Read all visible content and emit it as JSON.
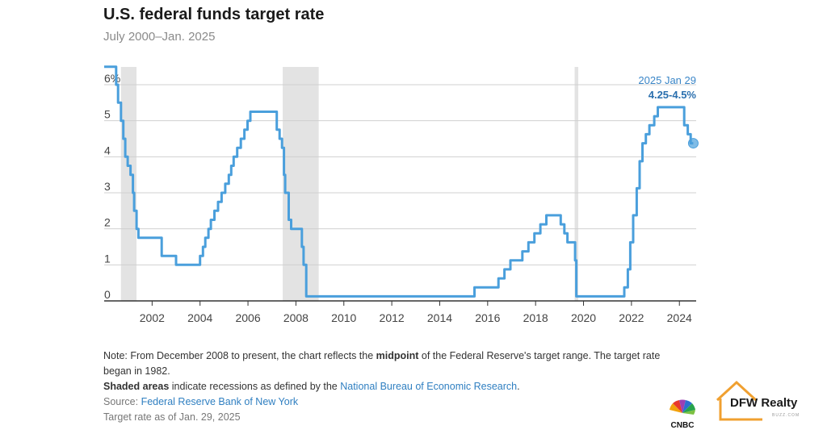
{
  "title": "U.S. federal funds target rate",
  "subtitle": "July 2000–Jan. 2025",
  "chart_data": {
    "type": "line",
    "ylim": [
      0,
      6.5
    ],
    "xlim": [
      2000.0,
      2025.25
    ],
    "y_ticks": [
      {
        "value": 6,
        "label": "6%"
      },
      {
        "value": 5,
        "label": "5"
      },
      {
        "value": 4,
        "label": "4"
      },
      {
        "value": 3,
        "label": "3"
      },
      {
        "value": 2,
        "label": "2"
      },
      {
        "value": 1,
        "label": "1"
      },
      {
        "value": 0,
        "label": "0"
      }
    ],
    "x_ticks": [
      "2002",
      "2004",
      "2006",
      "2008",
      "2010",
      "2012",
      "2014",
      "2016",
      "2018",
      "2020",
      "2022",
      "2024"
    ],
    "grid": true,
    "recessions": [
      [
        2001.2,
        2001.85
      ],
      [
        2007.95,
        2009.45
      ],
      [
        2020.13,
        2020.28
      ]
    ],
    "series": [
      {
        "color": "#4a9fdc",
        "points": [
          [
            2000.5,
            6.5
          ],
          [
            2001.0,
            6.5
          ],
          [
            2001.0,
            6.0
          ],
          [
            2001.08,
            6.0
          ],
          [
            2001.08,
            5.5
          ],
          [
            2001.2,
            5.5
          ],
          [
            2001.2,
            5.0
          ],
          [
            2001.3,
            5.0
          ],
          [
            2001.3,
            4.5
          ],
          [
            2001.38,
            4.5
          ],
          [
            2001.38,
            4.0
          ],
          [
            2001.48,
            4.0
          ],
          [
            2001.48,
            3.75
          ],
          [
            2001.6,
            3.75
          ],
          [
            2001.6,
            3.5
          ],
          [
            2001.7,
            3.5
          ],
          [
            2001.7,
            3.0
          ],
          [
            2001.75,
            3.0
          ],
          [
            2001.75,
            2.5
          ],
          [
            2001.85,
            2.5
          ],
          [
            2001.85,
            2.0
          ],
          [
            2001.93,
            2.0
          ],
          [
            2001.93,
            1.75
          ],
          [
            2002.9,
            1.75
          ],
          [
            2002.9,
            1.25
          ],
          [
            2003.5,
            1.25
          ],
          [
            2003.5,
            1.0
          ],
          [
            2004.5,
            1.0
          ],
          [
            2004.5,
            1.25
          ],
          [
            2004.62,
            1.25
          ],
          [
            2004.62,
            1.5
          ],
          [
            2004.72,
            1.5
          ],
          [
            2004.72,
            1.75
          ],
          [
            2004.85,
            1.75
          ],
          [
            2004.85,
            2.0
          ],
          [
            2004.95,
            2.0
          ],
          [
            2004.95,
            2.25
          ],
          [
            2005.1,
            2.25
          ],
          [
            2005.1,
            2.5
          ],
          [
            2005.25,
            2.5
          ],
          [
            2005.25,
            2.75
          ],
          [
            2005.4,
            2.75
          ],
          [
            2005.4,
            3.0
          ],
          [
            2005.55,
            3.0
          ],
          [
            2005.55,
            3.25
          ],
          [
            2005.7,
            3.25
          ],
          [
            2005.7,
            3.5
          ],
          [
            2005.8,
            3.5
          ],
          [
            2005.8,
            3.75
          ],
          [
            2005.9,
            3.75
          ],
          [
            2005.9,
            4.0
          ],
          [
            2006.05,
            4.0
          ],
          [
            2006.05,
            4.25
          ],
          [
            2006.2,
            4.25
          ],
          [
            2006.2,
            4.5
          ],
          [
            2006.35,
            4.5
          ],
          [
            2006.35,
            4.75
          ],
          [
            2006.48,
            4.75
          ],
          [
            2006.48,
            5.0
          ],
          [
            2006.6,
            5.0
          ],
          [
            2006.6,
            5.25
          ],
          [
            2007.7,
            5.25
          ],
          [
            2007.7,
            4.75
          ],
          [
            2007.82,
            4.75
          ],
          [
            2007.82,
            4.5
          ],
          [
            2007.92,
            4.5
          ],
          [
            2007.92,
            4.25
          ],
          [
            2008.0,
            4.25
          ],
          [
            2008.0,
            3.5
          ],
          [
            2008.05,
            3.5
          ],
          [
            2008.05,
            3.0
          ],
          [
            2008.2,
            3.0
          ],
          [
            2008.2,
            2.25
          ],
          [
            2008.3,
            2.25
          ],
          [
            2008.3,
            2.0
          ],
          [
            2008.75,
            2.0
          ],
          [
            2008.75,
            1.5
          ],
          [
            2008.82,
            1.5
          ],
          [
            2008.82,
            1.0
          ],
          [
            2008.93,
            1.0
          ],
          [
            2008.93,
            0.125
          ],
          [
            2015.95,
            0.125
          ],
          [
            2015.95,
            0.375
          ],
          [
            2016.95,
            0.375
          ],
          [
            2016.95,
            0.625
          ],
          [
            2017.2,
            0.625
          ],
          [
            2017.2,
            0.875
          ],
          [
            2017.45,
            0.875
          ],
          [
            2017.45,
            1.125
          ],
          [
            2017.95,
            1.125
          ],
          [
            2017.95,
            1.375
          ],
          [
            2018.2,
            1.375
          ],
          [
            2018.2,
            1.625
          ],
          [
            2018.45,
            1.625
          ],
          [
            2018.45,
            1.875
          ],
          [
            2018.7,
            1.875
          ],
          [
            2018.7,
            2.125
          ],
          [
            2018.95,
            2.125
          ],
          [
            2018.95,
            2.375
          ],
          [
            2019.55,
            2.375
          ],
          [
            2019.55,
            2.125
          ],
          [
            2019.7,
            2.125
          ],
          [
            2019.7,
            1.875
          ],
          [
            2019.83,
            1.875
          ],
          [
            2019.83,
            1.625
          ],
          [
            2020.15,
            1.625
          ],
          [
            2020.15,
            1.125
          ],
          [
            2020.2,
            1.125
          ],
          [
            2020.2,
            0.125
          ],
          [
            2022.2,
            0.125
          ],
          [
            2022.2,
            0.375
          ],
          [
            2022.35,
            0.375
          ],
          [
            2022.35,
            0.875
          ],
          [
            2022.45,
            0.875
          ],
          [
            2022.45,
            1.625
          ],
          [
            2022.57,
            1.625
          ],
          [
            2022.57,
            2.375
          ],
          [
            2022.72,
            2.375
          ],
          [
            2022.72,
            3.125
          ],
          [
            2022.84,
            3.125
          ],
          [
            2022.84,
            3.875
          ],
          [
            2022.96,
            3.875
          ],
          [
            2022.96,
            4.375
          ],
          [
            2023.1,
            4.375
          ],
          [
            2023.1,
            4.625
          ],
          [
            2023.25,
            4.625
          ],
          [
            2023.25,
            4.875
          ],
          [
            2023.45,
            4.875
          ],
          [
            2023.45,
            5.125
          ],
          [
            2023.6,
            5.125
          ],
          [
            2023.6,
            5.375
          ],
          [
            2024.7,
            5.375
          ],
          [
            2024.7,
            4.875
          ],
          [
            2024.85,
            4.875
          ],
          [
            2024.85,
            4.625
          ],
          [
            2024.97,
            4.625
          ],
          [
            2024.97,
            4.375
          ],
          [
            2025.08,
            4.375
          ]
        ],
        "end_point": {
          "x": 2025.08,
          "y": 4.375
        }
      }
    ],
    "annotations": {
      "date": "2025 Jan 29",
      "value": "4.25-4.5%"
    }
  },
  "notes": {
    "line1_pre": "Note: From December 2008 to present, the chart reflects the ",
    "line1_bold": "midpoint",
    "line1_post": " of the Federal Reserve's target range. The target rate began in 1982.",
    "line2_bold": "Shaded areas",
    "line2_mid": " indicate recessions as defined by the ",
    "line2_link": "National Bureau of Economic Research",
    "line2_end": ".",
    "source_label": "Source: ",
    "source_link": "Federal Reserve Bank of New York",
    "asof": "Target rate as of Jan. 29, 2025"
  },
  "logos": {
    "cnbc_text": "CNBC",
    "dfw_text": "DFW Realty",
    "dfw_sub": "BUZZ.COM"
  }
}
